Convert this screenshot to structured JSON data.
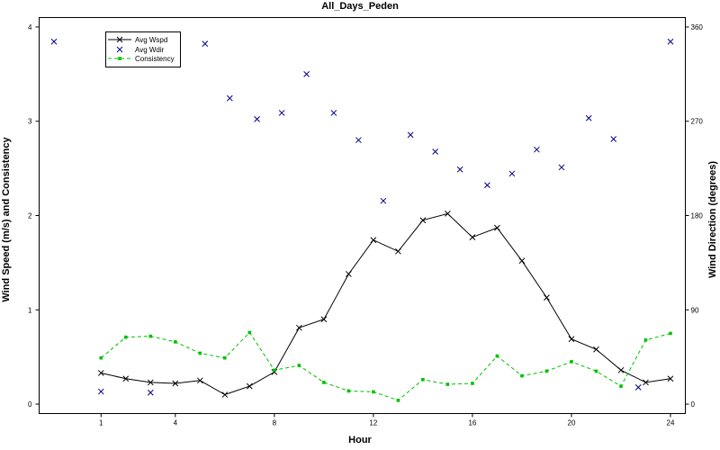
{
  "chart_data": {
    "type": "line",
    "title": "All_Days_Peden",
    "xlabel": "Hour",
    "ylabel_left": "Wind Speed (m/s) and Consistency",
    "ylabel_right": "Wind Direction (degrees)",
    "xlim": [
      -1.5,
      24.6
    ],
    "ylim_left": [
      -0.1,
      4.1
    ],
    "ylim_right": [
      -9,
      369
    ],
    "x_ticks": [
      1,
      4,
      8,
      12,
      16,
      20,
      24
    ],
    "y_ticks_left": [
      0,
      1,
      2,
      3,
      4
    ],
    "y_ticks_right": [
      0,
      90,
      180,
      270,
      360
    ],
    "legend": [
      "Avg Wspd",
      "Avg Wdir",
      "Consistency"
    ],
    "legend_position": "top-left",
    "grid": false,
    "colors": {
      "Avg Wspd": "#000000",
      "Avg Wdir": "#00008b",
      "Consistency": "#00c000"
    },
    "series": [
      {
        "name": "Avg Wspd",
        "axis": "left",
        "style": "line-x",
        "x": [
          1,
          2,
          3,
          4,
          5,
          6,
          7,
          8,
          9,
          10,
          11,
          12,
          13,
          14,
          15,
          16,
          17,
          18,
          19,
          20,
          21,
          22,
          23,
          24
        ],
        "y": [
          0.33,
          0.27,
          0.23,
          0.22,
          0.25,
          0.1,
          0.19,
          0.34,
          0.81,
          0.9,
          1.38,
          1.74,
          1.62,
          1.95,
          2.02,
          1.77,
          1.87,
          1.52,
          1.13,
          0.69,
          0.58,
          0.36,
          0.23,
          0.27
        ]
      },
      {
        "name": "Avg Wdir",
        "axis": "right",
        "style": "scatter-x",
        "x": [
          -0.9,
          1,
          3,
          5.2,
          6.2,
          7.3,
          8.3,
          9.3,
          10.4,
          11.4,
          12.4,
          13.5,
          14.5,
          15.5,
          16.6,
          17.6,
          18.6,
          19.6,
          20.7,
          21.7,
          22.7,
          24
        ],
        "y": [
          346,
          12,
          11,
          344,
          292,
          272,
          278,
          315,
          278,
          252,
          194,
          257,
          241,
          224,
          209,
          220,
          243,
          226,
          273,
          253,
          16,
          346
        ]
      },
      {
        "name": "Consistency",
        "axis": "left",
        "style": "dashed-square",
        "x": [
          1,
          2,
          3,
          4,
          5,
          6,
          7,
          8,
          9,
          10,
          11,
          12,
          13,
          14,
          15,
          16,
          17,
          18,
          19,
          20,
          21,
          22,
          23,
          24
        ],
        "y": [
          0.49,
          0.71,
          0.72,
          0.66,
          0.54,
          0.49,
          0.76,
          0.36,
          0.41,
          0.23,
          0.14,
          0.13,
          0.04,
          0.26,
          0.21,
          0.22,
          0.51,
          0.3,
          0.35,
          0.45,
          0.35,
          0.19,
          0.68,
          0.75
        ]
      }
    ]
  }
}
